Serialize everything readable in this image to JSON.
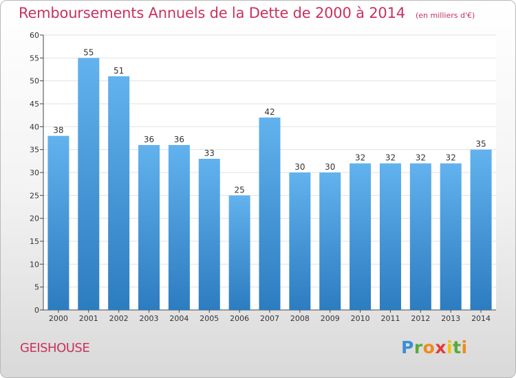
{
  "header": {
    "title": "Remboursements Annuels de la Dette de 2000 à 2014",
    "subtitle": "(en milliers d'€)"
  },
  "footer": {
    "commune": "GEISHOUSE",
    "logo": "Proxiti"
  },
  "colors": {
    "title": "#c8325e",
    "bar_light": "#62b2ee",
    "bar_dark": "#2c7cc0",
    "grid": "#e0e0e0"
  },
  "chart_data": {
    "type": "bar",
    "title": "Remboursements Annuels de la Dette de 2000 à 2014",
    "xlabel": "",
    "ylabel": "",
    "categories": [
      "2000",
      "2001",
      "2002",
      "2003",
      "2004",
      "2005",
      "2006",
      "2007",
      "2008",
      "2009",
      "2010",
      "2011",
      "2012",
      "2013",
      "2014"
    ],
    "values": [
      38,
      55,
      51,
      36,
      36,
      33,
      25,
      42,
      30,
      30,
      32,
      32,
      32,
      32,
      35
    ],
    "ylim": [
      0,
      60
    ],
    "yticks": [
      0,
      5,
      10,
      15,
      20,
      25,
      30,
      35,
      40,
      45,
      50,
      55,
      60
    ],
    "grid": true,
    "data_labels": true
  }
}
